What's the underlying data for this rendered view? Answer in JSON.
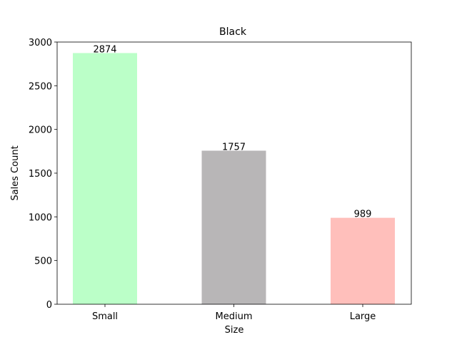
{
  "chart_data": {
    "type": "bar",
    "title": "Black",
    "x_label": "Size",
    "y_label": "Sales Count",
    "categories": [
      "Small",
      "Medium",
      "Large"
    ],
    "values": [
      2874,
      1757,
      989
    ],
    "colors": [
      "#bbffc8",
      "#b8b6b7",
      "#ffbfbb"
    ],
    "ylim": [
      0,
      3000
    ],
    "yticks": [
      0,
      500,
      1000,
      1500,
      2000,
      2500,
      3000
    ]
  }
}
